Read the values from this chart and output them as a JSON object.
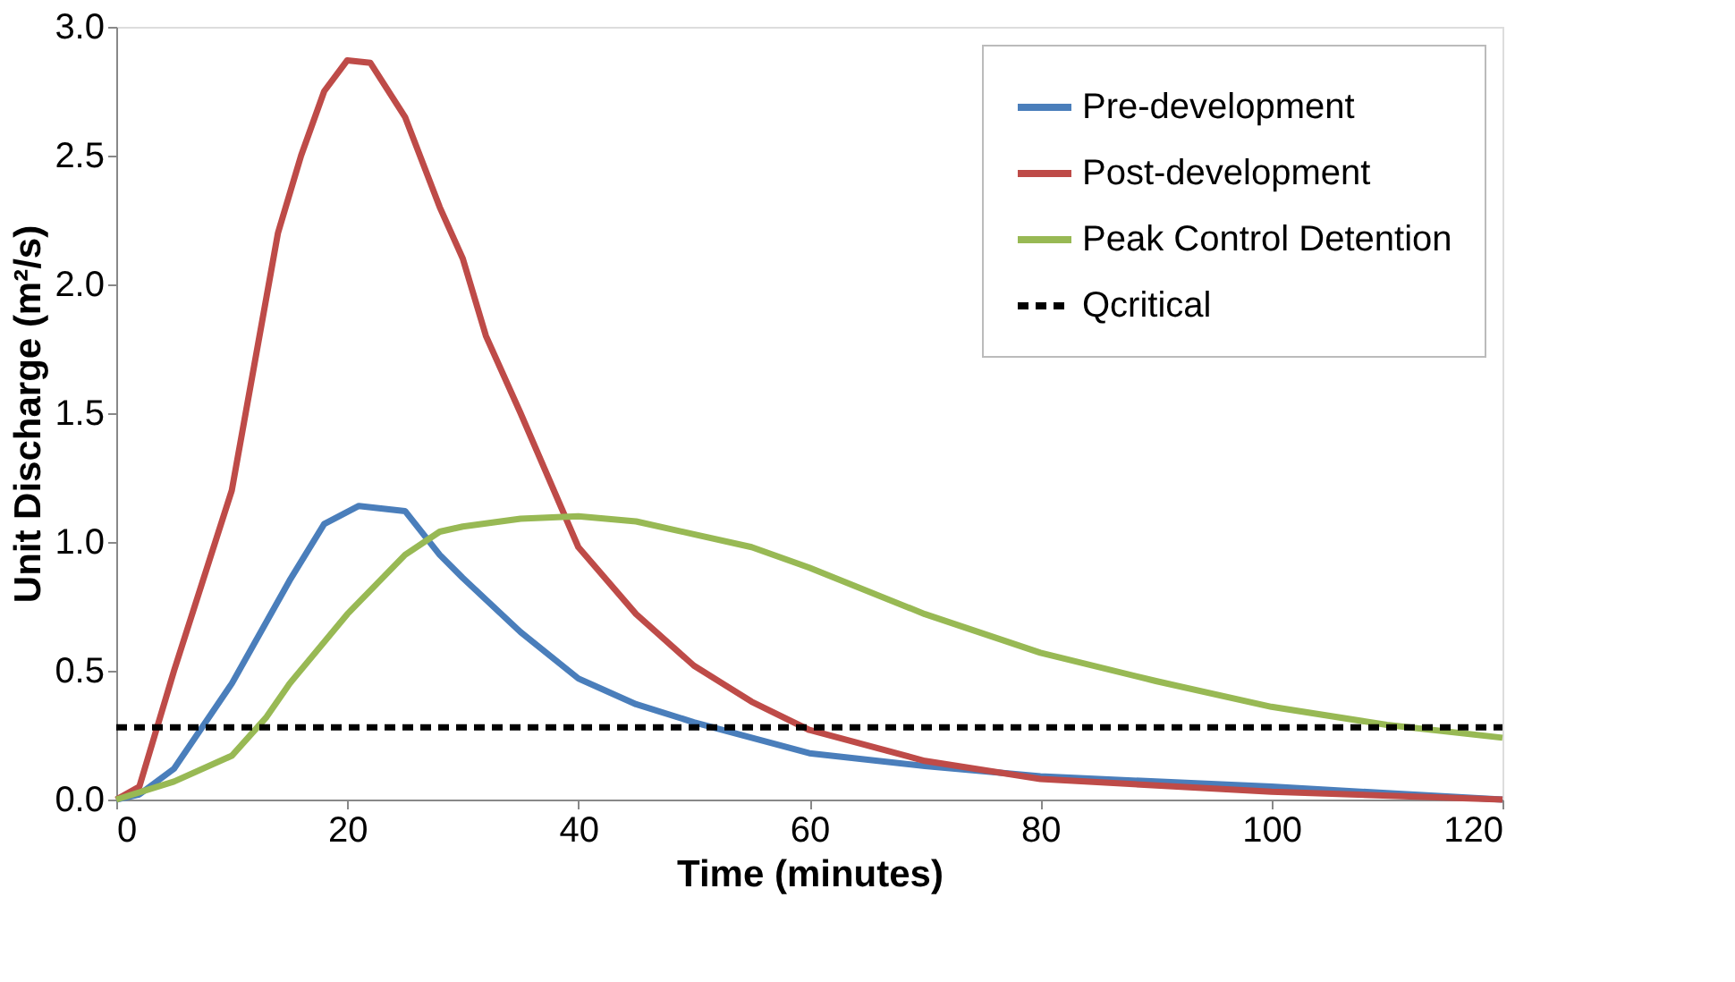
{
  "chart_data": {
    "type": "line",
    "xlabel": "Time (minutes)",
    "ylabel": "Unit Discharge (m²/s)",
    "xlim": [
      0,
      120
    ],
    "xticks": [
      0,
      20,
      40,
      60,
      80,
      100,
      120
    ],
    "ylim": [
      0,
      3.0
    ],
    "yticks": [
      {
        "value": 0,
        "label": "0.0"
      },
      0.5,
      {
        "value": 1,
        "label": "1.0"
      },
      1.5,
      {
        "value": 2,
        "label": "2.0"
      },
      2.5,
      {
        "value": 3,
        "label": "3.0"
      }
    ],
    "grid": false,
    "legend": "top right",
    "marker": "none",
    "series": [
      {
        "name": "Pre-development",
        "color": "#4a7ebb",
        "line_style": "solid",
        "x": [
          0,
          2,
          5,
          10,
          15,
          18,
          21,
          25,
          28,
          30,
          35,
          40,
          45,
          50,
          60,
          70,
          80,
          100,
          120
        ],
        "values": [
          0,
          0.02,
          0.12,
          0.45,
          0.85,
          1.07,
          1.14,
          1.12,
          0.95,
          0.86,
          0.65,
          0.47,
          0.37,
          0.3,
          0.18,
          0.13,
          0.09,
          0.05,
          0.0
        ]
      },
      {
        "name": "Post-development",
        "color": "#be4b48",
        "line_style": "solid",
        "x": [
          0,
          2,
          5,
          10,
          14,
          16,
          18,
          20,
          22,
          25,
          28,
          30,
          32,
          35,
          40,
          45,
          50,
          55,
          60,
          70,
          80,
          100,
          120
        ],
        "values": [
          0,
          0.05,
          0.5,
          1.2,
          2.2,
          2.5,
          2.75,
          2.87,
          2.86,
          2.65,
          2.3,
          2.1,
          1.8,
          1.5,
          0.98,
          0.72,
          0.52,
          0.38,
          0.27,
          0.15,
          0.08,
          0.03,
          0.0
        ]
      },
      {
        "name": "Peak Control Detention",
        "color": "#98b954",
        "line_style": "solid",
        "x": [
          0,
          5,
          10,
          13,
          15,
          20,
          25,
          28,
          30,
          35,
          40,
          45,
          50,
          55,
          60,
          70,
          80,
          90,
          100,
          110,
          120
        ],
        "values": [
          0,
          0.07,
          0.17,
          0.32,
          0.45,
          0.72,
          0.95,
          1.04,
          1.06,
          1.09,
          1.1,
          1.08,
          1.03,
          0.98,
          0.9,
          0.72,
          0.57,
          0.46,
          0.36,
          0.29,
          0.24
        ]
      },
      {
        "name": "Qcritical",
        "color": "#000000",
        "line_style": "dashed",
        "x": [
          0,
          120
        ],
        "values": [
          0.28,
          0.28
        ]
      }
    ]
  }
}
